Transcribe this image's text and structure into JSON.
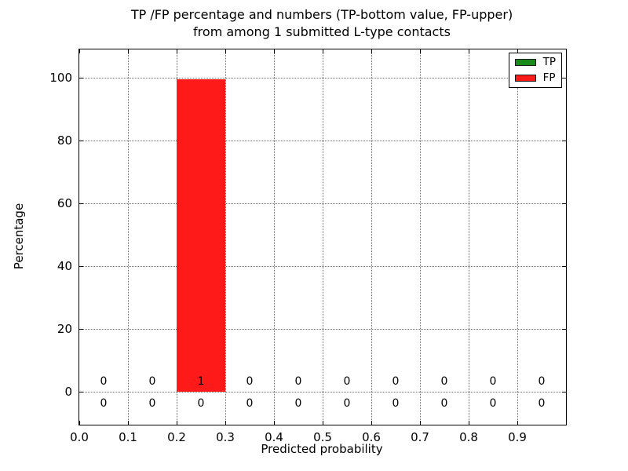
{
  "title": {
    "line1": "TP /FP percentage and numbers (TP-bottom value, FP-upper)",
    "line2": "from among 1 submitted L-type contacts"
  },
  "axes_labels": {
    "xlabel": "Predicted probability",
    "ylabel": "Percentage"
  },
  "legend": {
    "position": "upper right",
    "items": [
      {
        "label": "TP",
        "color": "#1a8a1a"
      },
      {
        "label": "FP",
        "color": "#ff1a1a"
      }
    ]
  },
  "chart_data": {
    "type": "bar",
    "title": "TP /FP percentage and numbers (TP-bottom value, FP-upper) from among 1 submitted L-type contacts",
    "xlabel": "Predicted probability",
    "ylabel": "Percentage",
    "xlim": [
      0.0,
      1.0
    ],
    "ylim": [
      -10.5,
      109
    ],
    "grid": true,
    "grid_style": "dotted",
    "legend_position": "upper right",
    "x_ticks": [
      "0.0",
      "0.1",
      "0.2",
      "0.3",
      "0.4",
      "0.5",
      "0.6",
      "0.7",
      "0.8",
      "0.9"
    ],
    "y_ticks": [
      0,
      20,
      40,
      60,
      80,
      100
    ],
    "bin_edges": [
      0.0,
      0.1,
      0.2,
      0.3,
      0.4,
      0.5,
      0.6,
      0.7,
      0.8,
      0.9,
      1.0
    ],
    "series": [
      {
        "name": "TP",
        "color": "#1a8a1a",
        "percentages": [
          0,
          0,
          0,
          0,
          0,
          0,
          0,
          0,
          0,
          0
        ],
        "counts": [
          0,
          0,
          0,
          0,
          0,
          0,
          0,
          0,
          0,
          0
        ]
      },
      {
        "name": "FP",
        "color": "#ff1a1a",
        "percentages": [
          0,
          0,
          99.5,
          0,
          0,
          0,
          0,
          0,
          0,
          0
        ],
        "counts": [
          0,
          0,
          1,
          0,
          0,
          0,
          0,
          0,
          0,
          0
        ]
      }
    ],
    "count_rows": {
      "upper_row": "FP",
      "lower_row": "TP"
    }
  }
}
